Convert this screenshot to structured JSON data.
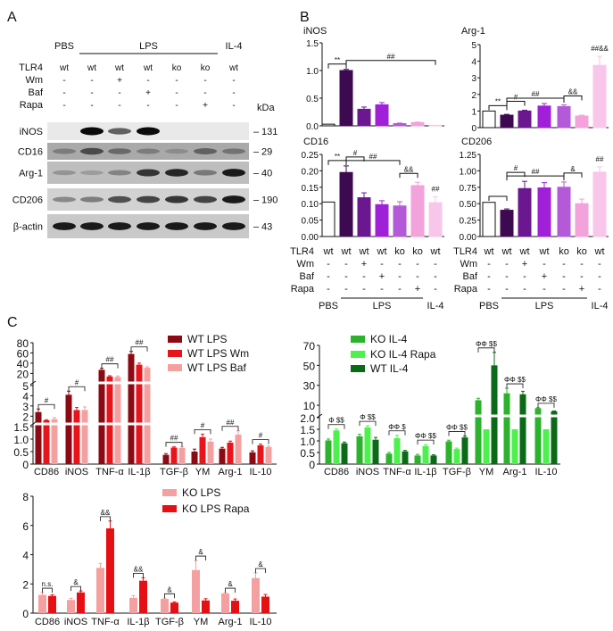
{
  "panels": {
    "a": "A",
    "b": "B",
    "c": "C"
  },
  "blot": {
    "groups": [
      {
        "label": "PBS",
        "lanes": [
          0,
          0
        ]
      },
      {
        "label": "LPS",
        "lanes": [
          1,
          5
        ]
      },
      {
        "label": "IL-4",
        "lanes": [
          6,
          6
        ]
      }
    ],
    "conditions": [
      {
        "label": "TLR4",
        "values": [
          "wt",
          "wt",
          "wt",
          "wt",
          "ko",
          "ko",
          "wt"
        ]
      },
      {
        "label": "Wm",
        "values": [
          "-",
          "-",
          "+",
          "-",
          "-",
          "-",
          "-"
        ]
      },
      {
        "label": "Baf",
        "values": [
          "-",
          "-",
          "-",
          "+",
          "-",
          "-",
          "-"
        ]
      },
      {
        "label": "Rapa",
        "values": [
          "-",
          "-",
          "-",
          "-",
          "-",
          "+",
          "-"
        ]
      }
    ],
    "unit": "kDa",
    "rows": [
      {
        "label": "iNOS",
        "kda": "131",
        "background": "#e9e9e9",
        "band_intensity": [
          0,
          1,
          0.7,
          1,
          0,
          0,
          0
        ]
      },
      {
        "label": "CD16",
        "kda": "29",
        "background": "#a9a9a9",
        "band_intensity": [
          0.5,
          0.75,
          0.6,
          0.5,
          0.4,
          0.65,
          0.55
        ]
      },
      {
        "label": "Arg-1",
        "kda": "40",
        "background": "#bebebe",
        "band_intensity": [
          0.4,
          0.35,
          0.5,
          0.85,
          0.9,
          0.55,
          0.95
        ]
      },
      {
        "label": "CD206",
        "kda": "190",
        "background": "#d2d2d2",
        "band_intensity": [
          0.5,
          0.55,
          0.75,
          0.8,
          0.85,
          0.8,
          0.95
        ]
      },
      {
        "label": "β-actin",
        "kda": "43",
        "background": "#c9c9c9",
        "band_intensity": [
          0.95,
          0.95,
          0.95,
          0.95,
          0.95,
          0.95,
          0.95
        ]
      }
    ]
  },
  "b_conditions": {
    "rows": [
      {
        "label": "TLR4",
        "values": [
          "wt",
          "wt",
          "wt",
          "wt",
          "ko",
          "ko",
          "wt"
        ]
      },
      {
        "label": "Wm",
        "values": [
          "-",
          "-",
          "+",
          "-",
          "-",
          "-",
          "-"
        ]
      },
      {
        "label": "Baf",
        "values": [
          "-",
          "-",
          "-",
          "+",
          "-",
          "-",
          "-"
        ]
      },
      {
        "label": "Rapa",
        "values": [
          "-",
          "-",
          "-",
          "-",
          "-",
          "+",
          "-"
        ]
      }
    ],
    "groups": [
      "PBS",
      "LPS",
      "IL-4"
    ]
  },
  "b_colors": [
    "#ffffff",
    "#3d0a52",
    "#6b1790",
    "#a020d8",
    "#b45ad8",
    "#f3a2dc",
    "#f8c6ea"
  ],
  "chart_data": [
    {
      "id": "inos",
      "type": "bar",
      "title": "iNOS",
      "ylim": [
        0,
        1.5
      ],
      "yticks": [
        "0.0",
        "0.5",
        "1.0",
        "1.5"
      ],
      "values": [
        0.03,
        1.0,
        0.3,
        0.38,
        0.04,
        0.06,
        0.01
      ],
      "errors": [
        0.01,
        0.02,
        0.04,
        0.04,
        0.01,
        0.01,
        0
      ],
      "annotations": [
        {
          "text": "**",
          "from": 0,
          "to": 1
        },
        {
          "text": "##",
          "from": 1,
          "to": 6
        }
      ]
    },
    {
      "id": "arg1",
      "type": "bar",
      "title": "Arg-1",
      "ylim": [
        0,
        5
      ],
      "yticks": [
        "0",
        "1",
        "2",
        "3",
        "4",
        "5"
      ],
      "values": [
        1.0,
        0.75,
        1.0,
        1.3,
        1.27,
        0.7,
        3.75
      ],
      "errors": [
        0,
        0.05,
        0.05,
        0.15,
        0.1,
        0.05,
        0.55
      ],
      "annotations": [
        {
          "text": "**",
          "from": 0,
          "to": 1
        },
        {
          "text": "#",
          "from": 1,
          "to": 2
        },
        {
          "text": "##",
          "from": 1,
          "to": 4
        },
        {
          "text": "&&",
          "from": 4,
          "to": 5
        },
        {
          "text": "##&&",
          "from": 6,
          "to": 6
        }
      ]
    },
    {
      "id": "cd16",
      "type": "bar",
      "title": "CD16",
      "ylim": [
        0,
        0.25
      ],
      "yticks": [
        "0.00",
        "0.05",
        "0.10",
        "0.15",
        "0.20",
        "0.25"
      ],
      "values": [
        0.105,
        0.195,
        0.118,
        0.097,
        0.093,
        0.155,
        0.103
      ],
      "errors": [
        0,
        0.02,
        0.015,
        0.012,
        0.013,
        0.01,
        0.018
      ],
      "annotations": [
        {
          "text": "**",
          "from": 0,
          "to": 1
        },
        {
          "text": "#",
          "from": 1,
          "to": 2
        },
        {
          "text": "##",
          "from": 1,
          "to": 4
        },
        {
          "text": "&&",
          "from": 4,
          "to": 5
        },
        {
          "text": "##",
          "from": 6,
          "to": 6
        }
      ]
    },
    {
      "id": "cd206",
      "type": "bar",
      "title": "CD206",
      "ylim": [
        0,
        1.25
      ],
      "yticks": [
        "0.00",
        "0.25",
        "0.50",
        "0.75",
        "1.00",
        "1.25"
      ],
      "values": [
        0.52,
        0.4,
        0.73,
        0.74,
        0.75,
        0.5,
        0.98
      ],
      "errors": [
        0.01,
        0.02,
        0.11,
        0.08,
        0.08,
        0.07,
        0.08
      ],
      "annotations": [
        {
          "text": "",
          "from": 0,
          "to": 1
        },
        {
          "text": "#",
          "from": 1,
          "to": 2
        },
        {
          "text": "##",
          "from": 1,
          "to": 4
        },
        {
          "text": "&",
          "from": 4,
          "to": 5
        },
        {
          "text": "##",
          "from": 6,
          "to": 6
        }
      ]
    },
    {
      "id": "wt",
      "type": "bar",
      "categories": [
        "CD86",
        "iNOS",
        "TNF-α",
        "IL-1β",
        "TGF-β",
        "YM",
        "Arg-1",
        "IL-10"
      ],
      "yticks": [
        "0",
        "0.5",
        "1.0",
        "1.5",
        "2",
        "3",
        "4",
        "5",
        "20",
        "40",
        "60",
        "80"
      ],
      "broken_axis": true,
      "legend": "top-right",
      "series": [
        {
          "name": "WT LPS",
          "color": "#8b0a14",
          "values": [
            2.4,
            4.1,
            27,
            58,
            0.37,
            0.5,
            0.62,
            0.47
          ],
          "errors": [
            0.3,
            0.35,
            3,
            5,
            0.05,
            0.1,
            0.05,
            0.06
          ]
        },
        {
          "name": "WT LPS Wm",
          "color": "#e8141c",
          "values": [
            1.6,
            2.6,
            14,
            37,
            0.66,
            1.08,
            0.86,
            0.75
          ],
          "errors": [
            0.05,
            0.25,
            1.5,
            3,
            0.03,
            0.12,
            0.06,
            0.05
          ]
        },
        {
          "name": "WT LPS Baf",
          "color": "#f5a0a0",
          "values": [
            1.7,
            2.6,
            13,
            31,
            0.65,
            0.9,
            1.18,
            0.68
          ],
          "errors": [
            0.15,
            0.3,
            2,
            2,
            0.04,
            0.1,
            0.15,
            0.04
          ]
        }
      ],
      "annotations": [
        {
          "cat": 0,
          "text": "#"
        },
        {
          "cat": 1,
          "text": "#"
        },
        {
          "cat": 2,
          "text": "##"
        },
        {
          "cat": 3,
          "text": "##"
        },
        {
          "cat": 4,
          "text": "##"
        },
        {
          "cat": 5,
          "text": "#"
        },
        {
          "cat": 6,
          "text": "##"
        },
        {
          "cat": 7,
          "text": "#"
        }
      ]
    },
    {
      "id": "koil4",
      "type": "bar",
      "categories": [
        "CD86",
        "iNOS",
        "TNF-α",
        "IL-1β",
        "TGF-β",
        "YM",
        "Arg-1",
        "IL-10"
      ],
      "yticks": [
        "0",
        "0.5",
        "1.0",
        "1.5",
        "2.0",
        "10",
        "30",
        "50",
        "70"
      ],
      "broken_axis": true,
      "legend": "top-left",
      "series": [
        {
          "name": "KO IL-4",
          "color": "#2cb22c",
          "values": [
            1.02,
            1.2,
            0.45,
            0.37,
            0.98,
            15,
            22,
            7
          ],
          "errors": [
            0.06,
            0.08,
            0.05,
            0.05,
            0.05,
            2,
            5,
            0.5
          ]
        },
        {
          "name": "KO IL-4 Rapa",
          "color": "#4ef04e",
          "values": [
            1.45,
            1.58,
            1.12,
            0.78,
            0.65,
            1.5,
            1.5,
            1.5
          ],
          "errors": [
            0.06,
            0.07,
            0.12,
            0.06,
            0.04,
            0,
            0,
            0
          ]
        },
        {
          "name": "WT IL-4",
          "color": "#0b6a18",
          "values": [
            0.9,
            1.05,
            0.55,
            0.37,
            1.15,
            50,
            21,
            4
          ],
          "errors": [
            0.05,
            0.1,
            0.04,
            0.03,
            0.06,
            13,
            3,
            0.3
          ]
        }
      ],
      "annotations": [
        {
          "cat": 0,
          "text": "Φ  $$"
        },
        {
          "cat": 1,
          "text": "Φ  $$"
        },
        {
          "cat": 2,
          "text": "ΦΦ  $"
        },
        {
          "cat": 3,
          "text": "ΦΦ $$"
        },
        {
          "cat": 4,
          "text": "ΦΦ $$"
        },
        {
          "cat": 5,
          "text": "ΦΦ  $$"
        },
        {
          "cat": 6,
          "text": "ΦΦ $$"
        },
        {
          "cat": 7,
          "text": "ΦΦ $$"
        }
      ]
    },
    {
      "id": "kolps",
      "type": "bar",
      "categories": [
        "CD86",
        "iNOS",
        "TNF-α",
        "IL-1β",
        "TGF-β",
        "YM",
        "Arg-1",
        "IL-10"
      ],
      "ylim": [
        0,
        8
      ],
      "yticks": [
        "0",
        "2",
        "4",
        "6",
        "8"
      ],
      "legend": "top-right",
      "series": [
        {
          "name": "KO LPS",
          "color": "#f5a0a0",
          "values": [
            1.25,
            0.9,
            3.1,
            1.05,
            0.97,
            2.95,
            1.35,
            2.4
          ],
          "errors": [
            0.15,
            0.12,
            0.3,
            0.15,
            0.05,
            0.65,
            0.05,
            0.35
          ]
        },
        {
          "name": "KO LPS Rapa",
          "color": "#e60f14",
          "values": [
            1.18,
            1.42,
            5.8,
            2.22,
            0.72,
            0.87,
            0.85,
            1.13
          ],
          "errors": [
            0.08,
            0.1,
            0.5,
            0.2,
            0.05,
            0.12,
            0.12,
            0.15
          ]
        }
      ],
      "annotations": [
        {
          "cat": 0,
          "text": "n.s."
        },
        {
          "cat": 1,
          "text": "&"
        },
        {
          "cat": 2,
          "text": "&&"
        },
        {
          "cat": 3,
          "text": "&&"
        },
        {
          "cat": 4,
          "text": "&"
        },
        {
          "cat": 5,
          "text": "&"
        },
        {
          "cat": 6,
          "text": "&"
        },
        {
          "cat": 7,
          "text": "&"
        }
      ]
    }
  ]
}
